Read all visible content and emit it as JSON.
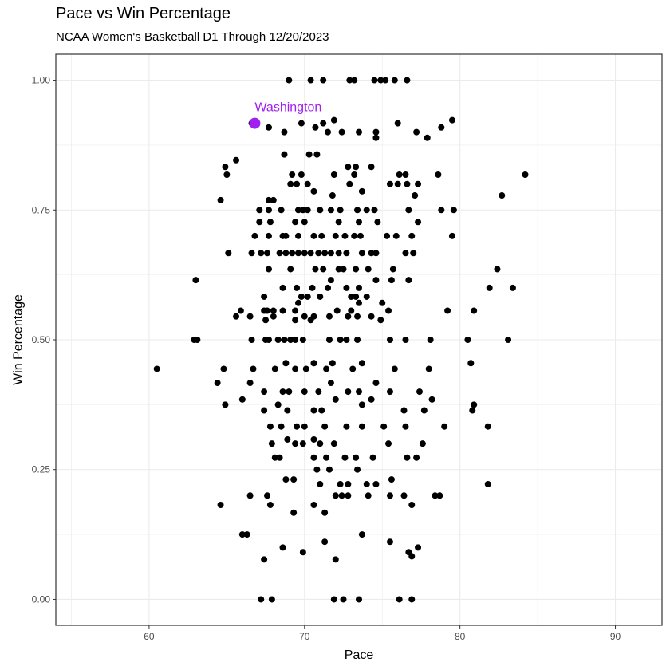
{
  "chart_data": {
    "type": "scatter",
    "title": "Pace vs Win Percentage",
    "subtitle": "NCAA Women's Basketball D1 Through 12/20/2023",
    "xlabel": "Pace",
    "ylabel": "Win Percentage",
    "xlim": [
      54,
      93
    ],
    "ylim": [
      -0.05,
      1.05
    ],
    "x_ticks": [
      60,
      70,
      80,
      90
    ],
    "y_ticks": [
      0.0,
      0.25,
      0.5,
      0.75,
      1.0
    ],
    "x_tick_labels": [
      "60",
      "70",
      "80",
      "90"
    ],
    "y_tick_labels": [
      "0.00",
      "0.25",
      "0.50",
      "0.75",
      "1.00"
    ],
    "grid": true,
    "point_color": "#000000",
    "highlight_color": "#a020f0",
    "highlight": {
      "label": "Washington",
      "x": 66.8,
      "y": 0.917
    },
    "points": [
      [
        69.0,
        1.0
      ],
      [
        70.4,
        1.0
      ],
      [
        71.2,
        1.0
      ],
      [
        72.9,
        1.0
      ],
      [
        73.2,
        1.0
      ],
      [
        74.5,
        1.0
      ],
      [
        74.9,
        1.0
      ],
      [
        75.2,
        1.0
      ],
      [
        75.8,
        1.0
      ],
      [
        76.6,
        1.0
      ],
      [
        66.6,
        0.917
      ],
      [
        67.7,
        0.909
      ],
      [
        68.7,
        0.9
      ],
      [
        69.8,
        0.917
      ],
      [
        70.7,
        0.909
      ],
      [
        71.2,
        0.917
      ],
      [
        71.5,
        0.9
      ],
      [
        71.9,
        0.923
      ],
      [
        72.4,
        0.9
      ],
      [
        73.5,
        0.9
      ],
      [
        74.6,
        0.9
      ],
      [
        74.6,
        0.889
      ],
      [
        76.0,
        0.917
      ],
      [
        77.2,
        0.9
      ],
      [
        77.9,
        0.889
      ],
      [
        78.8,
        0.909
      ],
      [
        79.5,
        0.923
      ],
      [
        64.9,
        0.833
      ],
      [
        65.0,
        0.818
      ],
      [
        65.6,
        0.846
      ],
      [
        68.7,
        0.857
      ],
      [
        70.3,
        0.857
      ],
      [
        70.8,
        0.857
      ],
      [
        69.2,
        0.818
      ],
      [
        69.8,
        0.818
      ],
      [
        71.9,
        0.818
      ],
      [
        72.8,
        0.833
      ],
      [
        73.2,
        0.818
      ],
      [
        73.3,
        0.833
      ],
      [
        74.3,
        0.833
      ],
      [
        76.1,
        0.818
      ],
      [
        76.5,
        0.818
      ],
      [
        78.6,
        0.818
      ],
      [
        84.2,
        0.818
      ],
      [
        64.6,
        0.769
      ],
      [
        67.7,
        0.769
      ],
      [
        68.0,
        0.769
      ],
      [
        69.1,
        0.8
      ],
      [
        69.5,
        0.8
      ],
      [
        70.2,
        0.8
      ],
      [
        70.6,
        0.786
      ],
      [
        71.8,
        0.778
      ],
      [
        72.9,
        0.8
      ],
      [
        73.7,
        0.786
      ],
      [
        74.5,
        0.75
      ],
      [
        75.5,
        0.8
      ],
      [
        76.0,
        0.8
      ],
      [
        76.6,
        0.8
      ],
      [
        77.1,
        0.778
      ],
      [
        77.3,
        0.8
      ],
      [
        78.8,
        0.75
      ],
      [
        79.6,
        0.75
      ],
      [
        82.7,
        0.778
      ],
      [
        67.1,
        0.75
      ],
      [
        67.7,
        0.75
      ],
      [
        68.5,
        0.75
      ],
      [
        69.6,
        0.75
      ],
      [
        69.9,
        0.75
      ],
      [
        70.2,
        0.75
      ],
      [
        71.0,
        0.75
      ],
      [
        71.7,
        0.75
      ],
      [
        72.3,
        0.75
      ],
      [
        73.4,
        0.75
      ],
      [
        74.0,
        0.75
      ],
      [
        74.7,
        0.727
      ],
      [
        76.7,
        0.75
      ],
      [
        77.3,
        0.727
      ],
      [
        66.8,
        0.7
      ],
      [
        67.1,
        0.727
      ],
      [
        67.8,
        0.727
      ],
      [
        69.4,
        0.727
      ],
      [
        70.0,
        0.727
      ],
      [
        72.2,
        0.727
      ],
      [
        73.5,
        0.727
      ],
      [
        67.7,
        0.7
      ],
      [
        68.6,
        0.7
      ],
      [
        68.8,
        0.7
      ],
      [
        69.6,
        0.7
      ],
      [
        70.6,
        0.7
      ],
      [
        71.1,
        0.7
      ],
      [
        72.0,
        0.7
      ],
      [
        72.6,
        0.7
      ],
      [
        73.2,
        0.7
      ],
      [
        73.6,
        0.7
      ],
      [
        75.3,
        0.7
      ],
      [
        75.9,
        0.7
      ],
      [
        76.9,
        0.7
      ],
      [
        79.5,
        0.7
      ],
      [
        65.1,
        0.667
      ],
      [
        66.6,
        0.667
      ],
      [
        67.2,
        0.667
      ],
      [
        67.6,
        0.667
      ],
      [
        68.4,
        0.667
      ],
      [
        68.8,
        0.667
      ],
      [
        69.2,
        0.667
      ],
      [
        69.6,
        0.667
      ],
      [
        70.0,
        0.667
      ],
      [
        70.4,
        0.667
      ],
      [
        70.9,
        0.667
      ],
      [
        71.3,
        0.667
      ],
      [
        71.7,
        0.667
      ],
      [
        72.2,
        0.667
      ],
      [
        72.7,
        0.667
      ],
      [
        73.7,
        0.667
      ],
      [
        74.3,
        0.667
      ],
      [
        74.6,
        0.667
      ],
      [
        76.5,
        0.667
      ],
      [
        77.0,
        0.667
      ],
      [
        67.7,
        0.636
      ],
      [
        69.1,
        0.636
      ],
      [
        70.7,
        0.636
      ],
      [
        71.2,
        0.636
      ],
      [
        72.2,
        0.636
      ],
      [
        72.5,
        0.636
      ],
      [
        73.3,
        0.636
      ],
      [
        74.1,
        0.636
      ],
      [
        75.7,
        0.636
      ],
      [
        82.4,
        0.636
      ],
      [
        63.0,
        0.615
      ],
      [
        68.6,
        0.6
      ],
      [
        69.5,
        0.6
      ],
      [
        70.5,
        0.6
      ],
      [
        71.5,
        0.6
      ],
      [
        71.7,
        0.615
      ],
      [
        72.7,
        0.6
      ],
      [
        73.5,
        0.6
      ],
      [
        74.6,
        0.615
      ],
      [
        75.6,
        0.615
      ],
      [
        76.7,
        0.615
      ],
      [
        81.9,
        0.6
      ],
      [
        83.4,
        0.6
      ],
      [
        69.8,
        0.583
      ],
      [
        70.2,
        0.583
      ],
      [
        71.0,
        0.583
      ],
      [
        73.0,
        0.583
      ],
      [
        73.3,
        0.583
      ],
      [
        73.5,
        0.571
      ],
      [
        74.0,
        0.583
      ],
      [
        75.0,
        0.571
      ],
      [
        67.4,
        0.583
      ],
      [
        69.6,
        0.571
      ],
      [
        65.9,
        0.556
      ],
      [
        67.4,
        0.556
      ],
      [
        67.6,
        0.556
      ],
      [
        68.0,
        0.556
      ],
      [
        68.6,
        0.556
      ],
      [
        69.4,
        0.556
      ],
      [
        70.0,
        0.545
      ],
      [
        70.6,
        0.545
      ],
      [
        72.1,
        0.556
      ],
      [
        73.0,
        0.556
      ],
      [
        74.3,
        0.545
      ],
      [
        75.4,
        0.556
      ],
      [
        79.2,
        0.556
      ],
      [
        80.9,
        0.556
      ],
      [
        65.6,
        0.545
      ],
      [
        66.5,
        0.545
      ],
      [
        67.5,
        0.538
      ],
      [
        68.0,
        0.545
      ],
      [
        69.4,
        0.538
      ],
      [
        70.4,
        0.538
      ],
      [
        71.6,
        0.545
      ],
      [
        72.8,
        0.545
      ],
      [
        73.4,
        0.545
      ],
      [
        74.9,
        0.538
      ],
      [
        62.9,
        0.5
      ],
      [
        63.1,
        0.5
      ],
      [
        66.6,
        0.5
      ],
      [
        67.5,
        0.5
      ],
      [
        67.7,
        0.5
      ],
      [
        68.3,
        0.5
      ],
      [
        68.7,
        0.5
      ],
      [
        69.1,
        0.5
      ],
      [
        69.4,
        0.5
      ],
      [
        69.9,
        0.5
      ],
      [
        71.6,
        0.5
      ],
      [
        72.3,
        0.5
      ],
      [
        72.7,
        0.5
      ],
      [
        73.4,
        0.5
      ],
      [
        75.5,
        0.5
      ],
      [
        76.5,
        0.5
      ],
      [
        78.1,
        0.5
      ],
      [
        80.5,
        0.5
      ],
      [
        83.1,
        0.5
      ],
      [
        60.5,
        0.444
      ],
      [
        64.8,
        0.444
      ],
      [
        66.7,
        0.444
      ],
      [
        68.1,
        0.444
      ],
      [
        68.8,
        0.455
      ],
      [
        69.4,
        0.444
      ],
      [
        70.1,
        0.444
      ],
      [
        70.6,
        0.455
      ],
      [
        71.4,
        0.444
      ],
      [
        71.8,
        0.455
      ],
      [
        73.1,
        0.444
      ],
      [
        73.7,
        0.455
      ],
      [
        75.8,
        0.444
      ],
      [
        78.0,
        0.444
      ],
      [
        80.7,
        0.455
      ],
      [
        64.4,
        0.417
      ],
      [
        66.5,
        0.417
      ],
      [
        67.4,
        0.4
      ],
      [
        68.6,
        0.4
      ],
      [
        69.0,
        0.4
      ],
      [
        70.0,
        0.4
      ],
      [
        70.9,
        0.4
      ],
      [
        71.7,
        0.417
      ],
      [
        72.8,
        0.4
      ],
      [
        73.5,
        0.4
      ],
      [
        74.6,
        0.417
      ],
      [
        75.5,
        0.4
      ],
      [
        77.4,
        0.4
      ],
      [
        78.2,
        0.385
      ],
      [
        64.9,
        0.375
      ],
      [
        66.0,
        0.385
      ],
      [
        67.4,
        0.364
      ],
      [
        68.3,
        0.375
      ],
      [
        68.9,
        0.364
      ],
      [
        70.6,
        0.364
      ],
      [
        71.1,
        0.364
      ],
      [
        72.0,
        0.385
      ],
      [
        73.7,
        0.375
      ],
      [
        74.3,
        0.385
      ],
      [
        76.4,
        0.364
      ],
      [
        77.7,
        0.364
      ],
      [
        80.8,
        0.364
      ],
      [
        80.9,
        0.375
      ],
      [
        67.8,
        0.333
      ],
      [
        68.5,
        0.333
      ],
      [
        69.5,
        0.333
      ],
      [
        70.0,
        0.333
      ],
      [
        71.3,
        0.333
      ],
      [
        72.7,
        0.333
      ],
      [
        73.7,
        0.333
      ],
      [
        75.1,
        0.333
      ],
      [
        76.5,
        0.333
      ],
      [
        79.0,
        0.333
      ],
      [
        81.8,
        0.333
      ],
      [
        67.9,
        0.3
      ],
      [
        68.9,
        0.308
      ],
      [
        69.4,
        0.3
      ],
      [
        69.9,
        0.3
      ],
      [
        70.6,
        0.308
      ],
      [
        71.0,
        0.3
      ],
      [
        71.9,
        0.3
      ],
      [
        75.4,
        0.3
      ],
      [
        77.6,
        0.3
      ],
      [
        68.1,
        0.273
      ],
      [
        68.4,
        0.273
      ],
      [
        70.6,
        0.273
      ],
      [
        71.4,
        0.273
      ],
      [
        72.6,
        0.273
      ],
      [
        73.3,
        0.273
      ],
      [
        74.4,
        0.273
      ],
      [
        76.6,
        0.273
      ],
      [
        77.2,
        0.273
      ],
      [
        68.8,
        0.231
      ],
      [
        69.3,
        0.231
      ],
      [
        70.8,
        0.25
      ],
      [
        71.0,
        0.222
      ],
      [
        71.6,
        0.25
      ],
      [
        72.3,
        0.222
      ],
      [
        72.8,
        0.222
      ],
      [
        73.4,
        0.25
      ],
      [
        74.0,
        0.222
      ],
      [
        74.6,
        0.222
      ],
      [
        75.6,
        0.231
      ],
      [
        81.8,
        0.222
      ],
      [
        64.6,
        0.182
      ],
      [
        66.5,
        0.2
      ],
      [
        67.6,
        0.2
      ],
      [
        67.8,
        0.182
      ],
      [
        69.3,
        0.167
      ],
      [
        70.6,
        0.182
      ],
      [
        71.3,
        0.167
      ],
      [
        72.0,
        0.2
      ],
      [
        72.4,
        0.2
      ],
      [
        72.8,
        0.2
      ],
      [
        74.1,
        0.2
      ],
      [
        75.5,
        0.2
      ],
      [
        76.4,
        0.2
      ],
      [
        76.9,
        0.182
      ],
      [
        78.4,
        0.2
      ],
      [
        78.7,
        0.2
      ],
      [
        66.0,
        0.125
      ],
      [
        66.3,
        0.125
      ],
      [
        68.6,
        0.1
      ],
      [
        69.9,
        0.091
      ],
      [
        71.3,
        0.111
      ],
      [
        72.0,
        0.077
      ],
      [
        73.7,
        0.125
      ],
      [
        75.5,
        0.111
      ],
      [
        76.7,
        0.091
      ],
      [
        76.9,
        0.083
      ],
      [
        77.3,
        0.1
      ],
      [
        67.4,
        0.077
      ],
      [
        67.2,
        0.0
      ],
      [
        67.9,
        0.0
      ],
      [
        71.9,
        0.0
      ],
      [
        72.5,
        0.0
      ],
      [
        73.5,
        0.0
      ],
      [
        76.1,
        0.0
      ],
      [
        76.9,
        0.0
      ]
    ]
  }
}
